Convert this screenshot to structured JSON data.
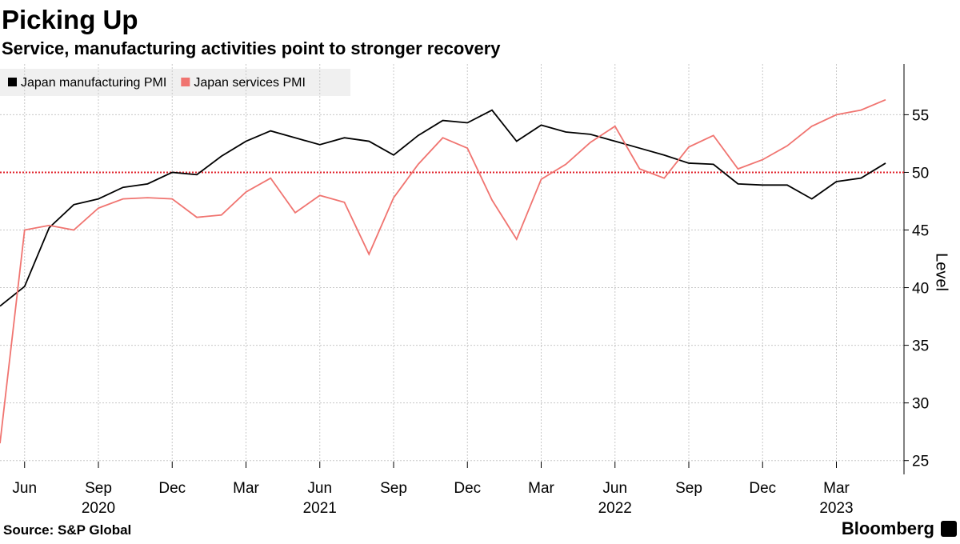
{
  "chart_data": {
    "type": "line",
    "title": "Picking Up",
    "subtitle": "Service, manufacturing activities point to stronger recovery",
    "y_label": "Level",
    "source": "Source: S&P Global",
    "brand": "Bloomberg",
    "x": [
      "2020-05",
      "2020-06",
      "2020-07",
      "2020-08",
      "2020-09",
      "2020-10",
      "2020-11",
      "2020-12",
      "2021-01",
      "2021-02",
      "2021-03",
      "2021-04",
      "2021-05",
      "2021-06",
      "2021-07",
      "2021-08",
      "2021-09",
      "2021-10",
      "2021-11",
      "2021-12",
      "2022-01",
      "2022-02",
      "2022-03",
      "2022-04",
      "2022-05",
      "2022-06",
      "2022-07",
      "2022-08",
      "2022-09",
      "2022-10",
      "2022-11",
      "2022-12",
      "2023-01",
      "2023-02",
      "2023-03",
      "2023-04",
      "2023-05"
    ],
    "series": [
      {
        "name": "Japan manufacturing PMI",
        "color": "#000000",
        "values": [
          38.4,
          40.1,
          45.2,
          47.2,
          47.7,
          48.7,
          49.0,
          50.0,
          49.8,
          51.4,
          52.7,
          53.6,
          53.0,
          52.4,
          53.0,
          52.7,
          51.5,
          53.2,
          54.5,
          54.3,
          55.4,
          52.7,
          54.1,
          53.5,
          53.3,
          52.7,
          52.1,
          51.5,
          50.8,
          50.7,
          49.0,
          48.9,
          48.9,
          47.7,
          49.2,
          49.5,
          50.8
        ]
      },
      {
        "name": "Japan services PMI",
        "color": "#f07470",
        "values": [
          26.5,
          45.0,
          45.4,
          45.0,
          46.9,
          47.7,
          47.8,
          47.7,
          46.1,
          46.3,
          48.3,
          49.5,
          46.5,
          48.0,
          47.4,
          42.9,
          47.8,
          50.7,
          53.0,
          52.1,
          47.6,
          44.2,
          49.4,
          50.7,
          52.6,
          54.0,
          50.3,
          49.5,
          52.2,
          53.2,
          50.3,
          51.1,
          52.3,
          54.0,
          55.0,
          55.4,
          56.3
        ]
      }
    ],
    "xlim": [
      "2020-05",
      "2023-05"
    ],
    "xticks": [
      {
        "value": "2020-06",
        "label": "Jun"
      },
      {
        "value": "2020-09",
        "label": "Sep"
      },
      {
        "value": "2020-12",
        "label": "Dec"
      },
      {
        "value": "2021-03",
        "label": "Mar"
      },
      {
        "value": "2021-06",
        "label": "Jun"
      },
      {
        "value": "2021-09",
        "label": "Sep"
      },
      {
        "value": "2021-12",
        "label": "Dec"
      },
      {
        "value": "2022-03",
        "label": "Mar"
      },
      {
        "value": "2022-06",
        "label": "Jun"
      },
      {
        "value": "2022-09",
        "label": "Sep"
      },
      {
        "value": "2022-12",
        "label": "Dec"
      },
      {
        "value": "2023-03",
        "label": "Mar"
      }
    ],
    "year_labels": [
      {
        "value": "2020-09",
        "label": "2020"
      },
      {
        "value": "2021-06",
        "label": "2021"
      },
      {
        "value": "2022-06",
        "label": "2022"
      },
      {
        "value": "2023-03",
        "label": "2023"
      }
    ],
    "ylim": [
      23.8,
      59.4
    ],
    "yticks": [
      25,
      30,
      35,
      40,
      45,
      50,
      55
    ],
    "reference_line": {
      "value": 50,
      "color": "#e0202a"
    },
    "grid": true,
    "legend": "top-left"
  }
}
